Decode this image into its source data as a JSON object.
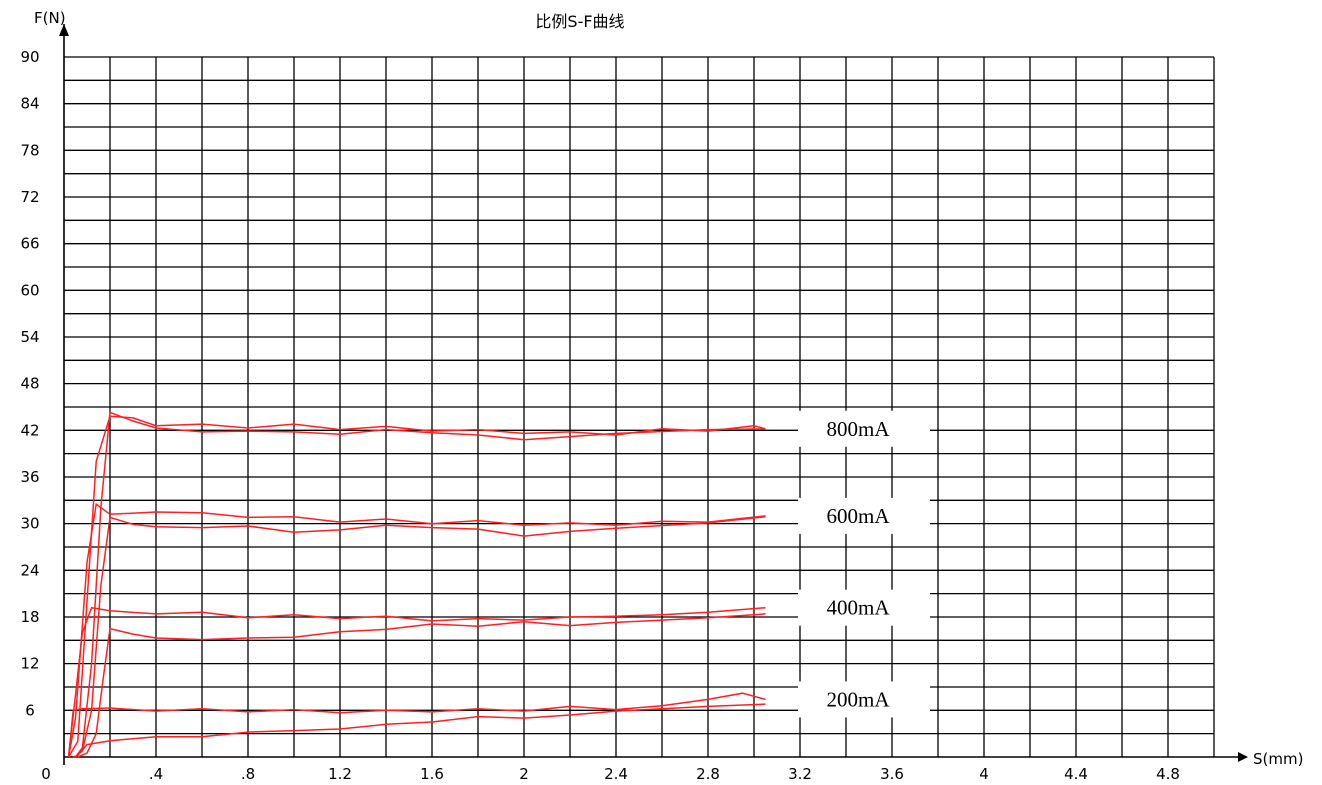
{
  "chart_data": {
    "type": "line",
    "title": "比例S-F曲线",
    "xlabel": "S(mm)",
    "ylabel": "F(N)",
    "xlim": [
      0,
      5.0
    ],
    "ylim": [
      0,
      90
    ],
    "x_tick_labels": [
      "0",
      ".4",
      ".8",
      "1.2",
      "1.6",
      "2",
      "2.4",
      "2.8",
      "3.2",
      "3.6",
      "4",
      "4.4",
      "4.8"
    ],
    "y_tick_labels": [
      "6",
      "12",
      "18",
      "24",
      "30",
      "36",
      "42",
      "48",
      "54",
      "60",
      "66",
      "72",
      "78",
      "84",
      "90"
    ],
    "grid": true,
    "line_color": "#ff2020",
    "series": [
      {
        "name": "800mA",
        "loading": [
          [
            0.02,
            0
          ],
          [
            0.06,
            2
          ],
          [
            0.1,
            20
          ],
          [
            0.14,
            38
          ],
          [
            0.2,
            43.8
          ],
          [
            0.3,
            43.6
          ],
          [
            0.4,
            42.6
          ],
          [
            0.6,
            42.8
          ],
          [
            0.8,
            42.3
          ],
          [
            1.0,
            42.8
          ],
          [
            1.2,
            42.1
          ],
          [
            1.4,
            42.5
          ],
          [
            1.6,
            41.9
          ],
          [
            1.8,
            42.1
          ],
          [
            2.0,
            41.6
          ],
          [
            2.2,
            41.8
          ],
          [
            2.4,
            41.4
          ],
          [
            2.6,
            42.2
          ],
          [
            2.8,
            41.9
          ],
          [
            3.0,
            42.6
          ],
          [
            3.05,
            42.2
          ]
        ],
        "unloading": [
          [
            3.05,
            42.2
          ],
          [
            2.8,
            42.1
          ],
          [
            2.4,
            41.6
          ],
          [
            2.2,
            41.2
          ],
          [
            2.0,
            40.8
          ],
          [
            1.8,
            41.4
          ],
          [
            1.6,
            41.7
          ],
          [
            1.4,
            42.1
          ],
          [
            1.2,
            41.5
          ],
          [
            1.0,
            41.8
          ],
          [
            0.8,
            41.9
          ],
          [
            0.6,
            41.8
          ],
          [
            0.4,
            42.3
          ],
          [
            0.3,
            43.2
          ],
          [
            0.2,
            44.3
          ],
          [
            0.16,
            32
          ],
          [
            0.12,
            12
          ],
          [
            0.08,
            1.2
          ],
          [
            0.05,
            0
          ]
        ]
      },
      {
        "name": "600mA",
        "loading": [
          [
            0.02,
            0
          ],
          [
            0.05,
            5
          ],
          [
            0.1,
            25
          ],
          [
            0.14,
            32.5
          ],
          [
            0.2,
            31.2
          ],
          [
            0.4,
            31.5
          ],
          [
            0.6,
            31.4
          ],
          [
            0.8,
            30.8
          ],
          [
            1.0,
            30.9
          ],
          [
            1.2,
            30.2
          ],
          [
            1.4,
            30.6
          ],
          [
            1.6,
            30.0
          ],
          [
            1.8,
            30.4
          ],
          [
            2.0,
            29.8
          ],
          [
            2.2,
            30.1
          ],
          [
            2.4,
            29.8
          ],
          [
            2.6,
            30.3
          ],
          [
            2.8,
            30.2
          ],
          [
            3.05,
            31.0
          ]
        ],
        "unloading": [
          [
            3.05,
            30.9
          ],
          [
            2.8,
            30.1
          ],
          [
            2.4,
            29.4
          ],
          [
            2.2,
            29.0
          ],
          [
            2.0,
            28.4
          ],
          [
            1.8,
            29.3
          ],
          [
            1.6,
            29.5
          ],
          [
            1.4,
            29.8
          ],
          [
            1.2,
            29.2
          ],
          [
            1.0,
            28.9
          ],
          [
            0.8,
            29.7
          ],
          [
            0.6,
            29.5
          ],
          [
            0.4,
            29.6
          ],
          [
            0.3,
            29.9
          ],
          [
            0.2,
            30.8
          ],
          [
            0.16,
            22
          ],
          [
            0.12,
            6
          ],
          [
            0.08,
            0.8
          ],
          [
            0.05,
            0
          ]
        ]
      },
      {
        "name": "400mA",
        "loading": [
          [
            0.02,
            0
          ],
          [
            0.05,
            8
          ],
          [
            0.08,
            16
          ],
          [
            0.12,
            19.2
          ],
          [
            0.2,
            18.8
          ],
          [
            0.4,
            18.4
          ],
          [
            0.6,
            18.6
          ],
          [
            0.8,
            17.9
          ],
          [
            1.0,
            18.3
          ],
          [
            1.2,
            17.8
          ],
          [
            1.4,
            18.1
          ],
          [
            1.6,
            17.5
          ],
          [
            1.8,
            17.8
          ],
          [
            2.0,
            17.6
          ],
          [
            2.2,
            18.0
          ],
          [
            2.4,
            18.1
          ],
          [
            2.6,
            18.3
          ],
          [
            2.8,
            18.6
          ],
          [
            3.05,
            19.2
          ]
        ],
        "unloading": [
          [
            3.05,
            18.4
          ],
          [
            2.8,
            17.9
          ],
          [
            2.4,
            17.3
          ],
          [
            2.2,
            16.9
          ],
          [
            2.0,
            17.4
          ],
          [
            1.8,
            16.8
          ],
          [
            1.6,
            17.1
          ],
          [
            1.4,
            16.4
          ],
          [
            1.2,
            16.1
          ],
          [
            1.0,
            15.4
          ],
          [
            0.8,
            15.3
          ],
          [
            0.6,
            15.1
          ],
          [
            0.4,
            15.3
          ],
          [
            0.3,
            15.8
          ],
          [
            0.2,
            16.5
          ],
          [
            0.17,
            10
          ],
          [
            0.14,
            3
          ],
          [
            0.1,
            0.5
          ],
          [
            0.06,
            0
          ]
        ]
      },
      {
        "name": "200mA",
        "loading": [
          [
            0.02,
            0
          ],
          [
            0.04,
            6
          ],
          [
            0.08,
            6.2
          ],
          [
            0.2,
            6.3
          ],
          [
            0.4,
            5.9
          ],
          [
            0.6,
            6.2
          ],
          [
            0.8,
            5.8
          ],
          [
            1.0,
            6.1
          ],
          [
            1.2,
            5.7
          ],
          [
            1.4,
            6.0
          ],
          [
            1.6,
            5.8
          ],
          [
            1.8,
            6.2
          ],
          [
            2.0,
            5.9
          ],
          [
            2.2,
            6.5
          ],
          [
            2.4,
            6.1
          ],
          [
            2.6,
            6.6
          ],
          [
            2.8,
            7.4
          ],
          [
            2.95,
            8.2
          ],
          [
            3.05,
            7.4
          ]
        ],
        "unloading": [
          [
            3.05,
            6.8
          ],
          [
            2.8,
            6.5
          ],
          [
            2.4,
            5.9
          ],
          [
            2.2,
            5.4
          ],
          [
            2.0,
            5.0
          ],
          [
            1.8,
            5.2
          ],
          [
            1.6,
            4.5
          ],
          [
            1.4,
            4.2
          ],
          [
            1.2,
            3.6
          ],
          [
            1.0,
            3.4
          ],
          [
            0.8,
            3.2
          ],
          [
            0.6,
            2.6
          ],
          [
            0.4,
            2.6
          ],
          [
            0.2,
            2.1
          ],
          [
            0.1,
            1.6
          ],
          [
            0.06,
            0.2
          ],
          [
            0.04,
            0
          ]
        ]
      }
    ]
  }
}
